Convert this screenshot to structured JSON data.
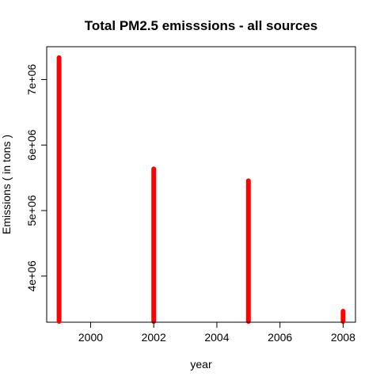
{
  "chart_data": {
    "type": "bar",
    "title": "Total PM2.5 emisssions - all sources",
    "xlabel": "year",
    "ylabel": "Emissions ( in tons )",
    "x": [
      1999,
      2002,
      2005,
      2008
    ],
    "values": [
      7332967,
      5635780,
      5454703,
      3464206
    ],
    "xlim": [
      1999,
      2008
    ],
    "ylim": [
      3464206,
      7332967
    ],
    "x_ticks": [
      2000,
      2002,
      2004,
      2006,
      2008
    ],
    "x_tick_labels": [
      "2000",
      "2002",
      "2004",
      "2006",
      "2008"
    ],
    "y_ticks": [
      4000000,
      5000000,
      6000000,
      7000000
    ],
    "y_tick_labels": [
      "4e+06",
      "5e+06",
      "6e+06",
      "7e+06"
    ],
    "bar_color": "#ff0000",
    "grid": false,
    "legend": "none"
  }
}
